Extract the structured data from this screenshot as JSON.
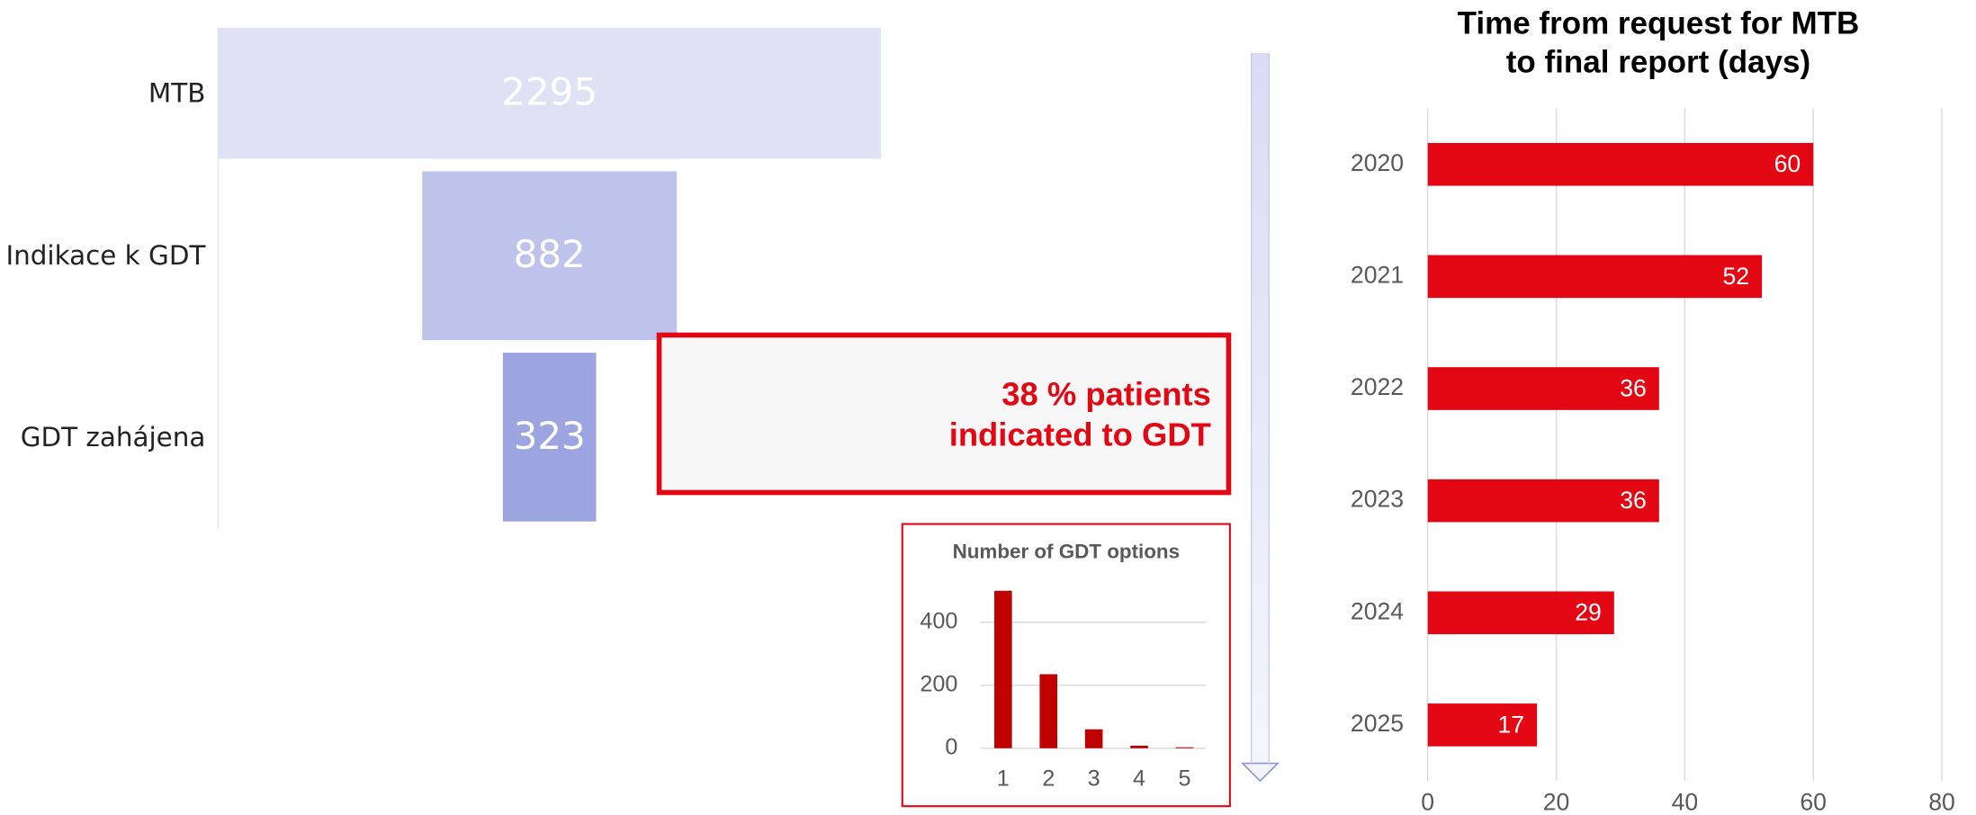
{
  "chart_data": [
    {
      "type": "funnel",
      "categories": [
        "MTB",
        "Indikace k GDT",
        "GDT zahájena"
      ],
      "values": [
        2295,
        882,
        323
      ],
      "colors": [
        "#dfe1f5",
        "#bec3ec",
        "#9da5e1"
      ],
      "annotation": [
        "38 % patients",
        "indicated to GDT"
      ]
    },
    {
      "type": "bar",
      "title": "Number of GDT options",
      "categories": [
        1,
        2,
        3,
        4,
        5
      ],
      "values": [
        500,
        235,
        60,
        8,
        3
      ],
      "color": "#c00000",
      "ylim": [
        0,
        540
      ],
      "yticks": [
        0,
        200,
        400
      ],
      "grid": true
    },
    {
      "type": "hbar",
      "title": [
        "Time from request for MTB",
        "to final report (days)"
      ],
      "categories": [
        "2020",
        "2021",
        "2022",
        "2023",
        "2024",
        "2025"
      ],
      "values": [
        60,
        52,
        36,
        36,
        29,
        17
      ],
      "color": "#e30613",
      "xlim": [
        0,
        80
      ],
      "xticks": [
        0,
        20,
        40,
        60,
        80
      ],
      "grid": true
    }
  ]
}
